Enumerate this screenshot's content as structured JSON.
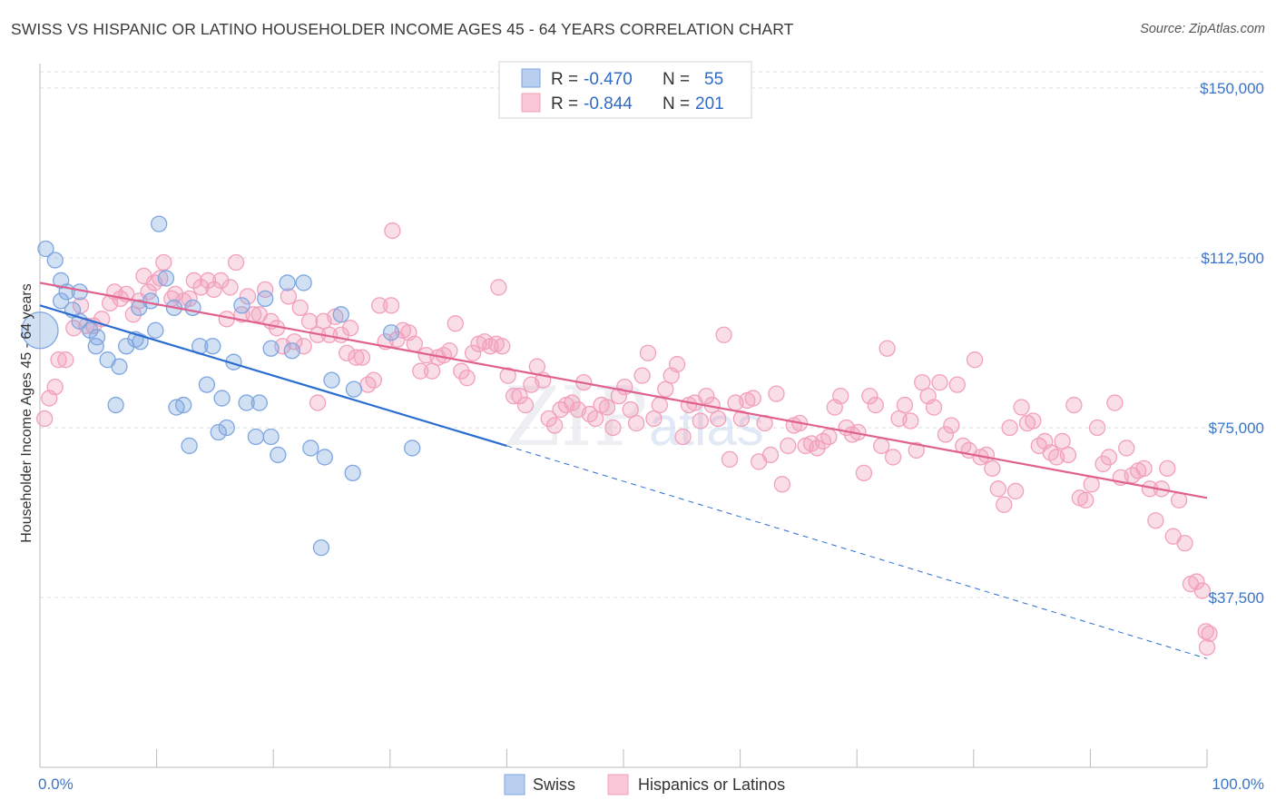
{
  "title": "SWISS VS HISPANIC OR LATINO HOUSEHOLDER INCOME AGES 45 - 64 YEARS CORRELATION CHART",
  "source": "Source: ZipAtlas.com",
  "colors": {
    "swiss": "#7ea6e0",
    "swiss_line": "#2a6dd0",
    "hispanic": "#f2a0bb",
    "hispanic_line": "#e0608e",
    "tick": "#3b74c7"
  },
  "chart_data": {
    "type": "scatter",
    "xlabel": "",
    "ylabel": "Householder Income Ages 45 - 64 years",
    "xlim": [
      0,
      100
    ],
    "ylim": [
      0,
      157000
    ],
    "x_tick_labels": [
      "0.0%",
      "100.0%"
    ],
    "y_ticks": [
      37500,
      75000,
      112500,
      150000
    ],
    "y_tick_labels": [
      "$37,500",
      "$75,000",
      "$112,500",
      "$150,000"
    ],
    "grid": true,
    "legend": {
      "position": "top-center",
      "entries": [
        {
          "r_label": "R =",
          "r_value": "-0.470",
          "n_label": "N =",
          "n_value": "55"
        },
        {
          "r_label": "R =",
          "r_value": "-0.844",
          "n_label": "N =",
          "n_value": "201"
        }
      ]
    },
    "series": [
      {
        "name": "Swiss",
        "trend": {
          "x0": 0,
          "y0": 102000,
          "x1": 40,
          "y1": 71000,
          "dashed_to_x": 100,
          "dashed_to_y": 24000
        },
        "points": [
          [
            0.5,
            114.5
          ],
          [
            1.3,
            112
          ],
          [
            1.8,
            107.5
          ],
          [
            2.3,
            105
          ],
          [
            3.4,
            105
          ],
          [
            2.8,
            101
          ],
          [
            3.4,
            98.5
          ],
          [
            4.3,
            96.5
          ],
          [
            4.9,
            95
          ],
          [
            4.8,
            93
          ],
          [
            5.8,
            90
          ],
          [
            6.5,
            80
          ],
          [
            6.8,
            88.5
          ],
          [
            7.4,
            93
          ],
          [
            8.2,
            94.5
          ],
          [
            8.5,
            101.5
          ],
          [
            8.6,
            94
          ],
          [
            9.5,
            103
          ],
          [
            9.9,
            96.5
          ],
          [
            10.2,
            120
          ],
          [
            10.8,
            108
          ],
          [
            11.5,
            101.5
          ],
          [
            11.7,
            79.5
          ],
          [
            12.3,
            80
          ],
          [
            12.8,
            71
          ],
          [
            13.1,
            101.5
          ],
          [
            13.7,
            93
          ],
          [
            14.3,
            84.5
          ],
          [
            14.8,
            93
          ],
          [
            15.3,
            74
          ],
          [
            15.6,
            81.5
          ],
          [
            16.0,
            75
          ],
          [
            16.6,
            89.5
          ],
          [
            17.3,
            102
          ],
          [
            17.7,
            80.5
          ],
          [
            18.5,
            73
          ],
          [
            18.8,
            80.5
          ],
          [
            19.3,
            103.5
          ],
          [
            19.8,
            92.5
          ],
          [
            19.8,
            73
          ],
          [
            20.4,
            69
          ],
          [
            21.2,
            107
          ],
          [
            21.6,
            92
          ],
          [
            22.6,
            107
          ],
          [
            23.2,
            70.5
          ],
          [
            24.4,
            68.5
          ],
          [
            25.0,
            85.5
          ],
          [
            25.8,
            100
          ],
          [
            26.8,
            65
          ],
          [
            26.9,
            83.5
          ],
          [
            30.1,
            96
          ],
          [
            31.9,
            70.5
          ],
          [
            24.1,
            48.5
          ],
          [
            0.0,
            96.5
          ],
          [
            1.8,
            103
          ]
        ]
      },
      {
        "name": "Hispanics or Latinos",
        "trend": {
          "x0": 0,
          "y0": 107000,
          "x1": 100,
          "y1": 59500
        },
        "points": [
          [
            0.4,
            77
          ],
          [
            0.8,
            81.5
          ],
          [
            1.3,
            84
          ],
          [
            1.6,
            90
          ],
          [
            2.2,
            90
          ],
          [
            2.9,
            97
          ],
          [
            3.5,
            102
          ],
          [
            4.0,
            97.5
          ],
          [
            4.6,
            97.5
          ],
          [
            5.3,
            99
          ],
          [
            6.0,
            102.5
          ],
          [
            6.4,
            105
          ],
          [
            6.9,
            103.5
          ],
          [
            7.4,
            104.5
          ],
          [
            8.0,
            100
          ],
          [
            8.5,
            103
          ],
          [
            8.9,
            108.5
          ],
          [
            9.3,
            105
          ],
          [
            9.8,
            107
          ],
          [
            10.3,
            108
          ],
          [
            10.6,
            111.5
          ],
          [
            11.3,
            103.5
          ],
          [
            11.6,
            104.5
          ],
          [
            12.3,
            103
          ],
          [
            12.8,
            103.5
          ],
          [
            13.2,
            107.5
          ],
          [
            13.8,
            106
          ],
          [
            14.4,
            107.5
          ],
          [
            14.9,
            105.5
          ],
          [
            15.5,
            107.5
          ],
          [
            16.0,
            99
          ],
          [
            16.3,
            106
          ],
          [
            16.8,
            111.5
          ],
          [
            17.3,
            100
          ],
          [
            17.8,
            104
          ],
          [
            18.3,
            100
          ],
          [
            18.8,
            100
          ],
          [
            19.3,
            105.5
          ],
          [
            19.8,
            98.5
          ],
          [
            20.3,
            97
          ],
          [
            20.8,
            93
          ],
          [
            21.3,
            104
          ],
          [
            21.8,
            94
          ],
          [
            22.3,
            101.5
          ],
          [
            22.6,
            93
          ],
          [
            23.1,
            98.5
          ],
          [
            23.8,
            95.5
          ],
          [
            24.3,
            98.5
          ],
          [
            24.8,
            95.5
          ],
          [
            25.3,
            99.5
          ],
          [
            25.8,
            95.5
          ],
          [
            26.3,
            91.5
          ],
          [
            26.6,
            97
          ],
          [
            27.1,
            90.5
          ],
          [
            27.6,
            90.5
          ],
          [
            28.1,
            84.5
          ],
          [
            28.6,
            85.5
          ],
          [
            29.1,
            102
          ],
          [
            29.6,
            94
          ],
          [
            30.1,
            102
          ],
          [
            30.6,
            94.5
          ],
          [
            31.1,
            96.5
          ],
          [
            31.6,
            96
          ],
          [
            32.1,
            93.5
          ],
          [
            32.6,
            87.5
          ],
          [
            33.1,
            91
          ],
          [
            33.6,
            87.5
          ],
          [
            34.1,
            90.5
          ],
          [
            34.6,
            91
          ],
          [
            35.1,
            92
          ],
          [
            35.6,
            98
          ],
          [
            36.1,
            87.5
          ],
          [
            36.6,
            86
          ],
          [
            37.1,
            91.5
          ],
          [
            37.6,
            93.5
          ],
          [
            38.1,
            94
          ],
          [
            38.6,
            93
          ],
          [
            39.1,
            93.5
          ],
          [
            39.6,
            93
          ],
          [
            40.1,
            86.5
          ],
          [
            40.6,
            82
          ],
          [
            41.1,
            82
          ],
          [
            41.6,
            80
          ],
          [
            42.1,
            84.5
          ],
          [
            42.6,
            88.5
          ],
          [
            43.1,
            85.5
          ],
          [
            43.6,
            77
          ],
          [
            44.1,
            75.5
          ],
          [
            44.6,
            79
          ],
          [
            45.1,
            80
          ],
          [
            45.6,
            80.5
          ],
          [
            46.1,
            79
          ],
          [
            46.6,
            85
          ],
          [
            47.1,
            78
          ],
          [
            47.6,
            77
          ],
          [
            48.1,
            80
          ],
          [
            48.6,
            79.5
          ],
          [
            49.1,
            75
          ],
          [
            49.6,
            82
          ],
          [
            50.1,
            84
          ],
          [
            50.6,
            79
          ],
          [
            51.1,
            76
          ],
          [
            51.6,
            86.5
          ],
          [
            52.1,
            91.5
          ],
          [
            52.6,
            77
          ],
          [
            53.1,
            80
          ],
          [
            53.6,
            83.5
          ],
          [
            54.1,
            86.5
          ],
          [
            54.6,
            89
          ],
          [
            55.1,
            73
          ],
          [
            55.6,
            80
          ],
          [
            56.1,
            80.5
          ],
          [
            56.6,
            76.5
          ],
          [
            57.1,
            82
          ],
          [
            57.6,
            80
          ],
          [
            58.1,
            77
          ],
          [
            58.6,
            95.5
          ],
          [
            59.1,
            68
          ],
          [
            59.6,
            80.5
          ],
          [
            60.1,
            77
          ],
          [
            60.6,
            81
          ],
          [
            61.1,
            81.5
          ],
          [
            61.6,
            67.5
          ],
          [
            62.1,
            76
          ],
          [
            62.6,
            69
          ],
          [
            63.1,
            82.5
          ],
          [
            63.6,
            62.5
          ],
          [
            64.1,
            71
          ],
          [
            64.6,
            75.5
          ],
          [
            65.1,
            76
          ],
          [
            65.6,
            71
          ],
          [
            66.1,
            71.5
          ],
          [
            66.6,
            70.5
          ],
          [
            67.1,
            72
          ],
          [
            67.6,
            73
          ],
          [
            68.1,
            79.5
          ],
          [
            68.6,
            82
          ],
          [
            69.1,
            75
          ],
          [
            69.6,
            73.5
          ],
          [
            70.1,
            74
          ],
          [
            70.6,
            65
          ],
          [
            71.1,
            82
          ],
          [
            71.6,
            80
          ],
          [
            72.1,
            71
          ],
          [
            72.6,
            92.5
          ],
          [
            73.1,
            68.5
          ],
          [
            73.6,
            77
          ],
          [
            74.1,
            80
          ],
          [
            74.6,
            76.5
          ],
          [
            75.1,
            70
          ],
          [
            75.6,
            85
          ],
          [
            76.1,
            82
          ],
          [
            76.6,
            79.5
          ],
          [
            77.1,
            85
          ],
          [
            77.6,
            73.5
          ],
          [
            78.1,
            75.5
          ],
          [
            78.6,
            84.5
          ],
          [
            79.1,
            71
          ],
          [
            79.6,
            70
          ],
          [
            80.1,
            90
          ],
          [
            80.6,
            68.5
          ],
          [
            81.1,
            69
          ],
          [
            81.6,
            66
          ],
          [
            82.1,
            61.5
          ],
          [
            82.6,
            58
          ],
          [
            83.1,
            75
          ],
          [
            83.6,
            61
          ],
          [
            84.1,
            79.5
          ],
          [
            84.6,
            76
          ],
          [
            85.1,
            76.5
          ],
          [
            85.6,
            71
          ],
          [
            86.1,
            72
          ],
          [
            86.6,
            69.5
          ],
          [
            87.1,
            68.5
          ],
          [
            87.6,
            72
          ],
          [
            88.1,
            69
          ],
          [
            88.6,
            80
          ],
          [
            89.1,
            59.5
          ],
          [
            89.6,
            59
          ],
          [
            90.1,
            62.5
          ],
          [
            90.6,
            75
          ],
          [
            91.1,
            67
          ],
          [
            91.6,
            68.5
          ],
          [
            92.1,
            80.5
          ],
          [
            92.6,
            64
          ],
          [
            93.1,
            70.5
          ],
          [
            93.6,
            64.5
          ],
          [
            94.1,
            65.5
          ],
          [
            94.6,
            66
          ],
          [
            95.1,
            61.5
          ],
          [
            95.6,
            54.5
          ],
          [
            96.1,
            61.5
          ],
          [
            96.6,
            66
          ],
          [
            97.1,
            51
          ],
          [
            97.6,
            59
          ],
          [
            98.1,
            49.5
          ],
          [
            98.6,
            40.5
          ],
          [
            99.1,
            41
          ],
          [
            99.6,
            39
          ],
          [
            99.9,
            30
          ],
          [
            100.0,
            26.5
          ],
          [
            100.2,
            29.5
          ],
          [
            23.8,
            80.5
          ],
          [
            30.2,
            118.5
          ],
          [
            39.3,
            106
          ]
        ]
      }
    ]
  }
}
